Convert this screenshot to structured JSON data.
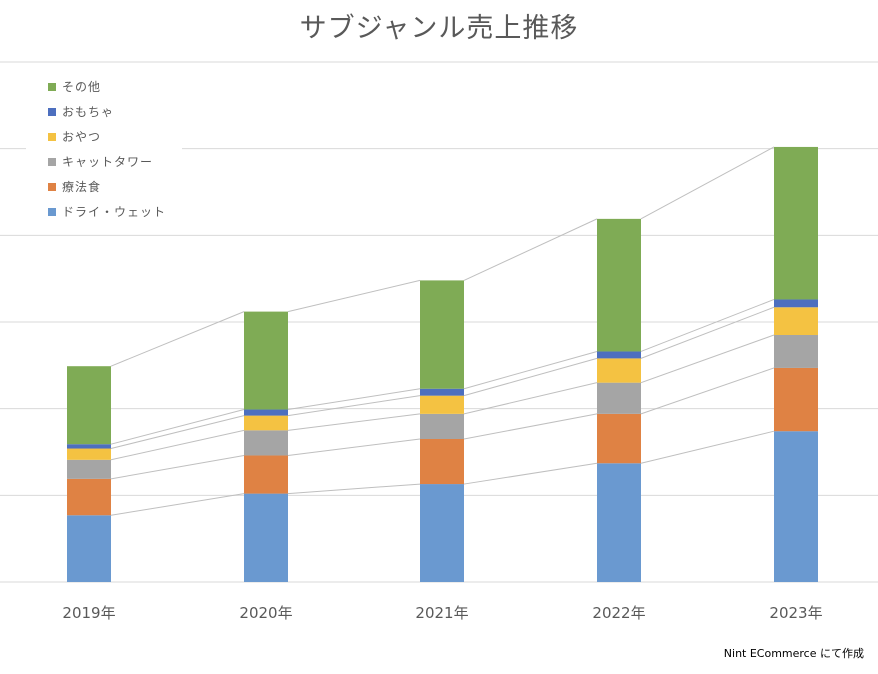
{
  "chart_data": {
    "type": "bar",
    "stacked": true,
    "title": "サブジャンル売上推移",
    "categories": [
      "2019年",
      "2020年",
      "2021年",
      "2022年",
      "2023年"
    ],
    "ylim": [
      0,
      6
    ],
    "y_axis_labels_shown": false,
    "grid": true,
    "series_lines": true,
    "legend_position": "top-left",
    "series": [
      {
        "name": "ドライ・ウェット",
        "color": "#6A99D0",
        "values": [
          0.77,
          1.02,
          1.13,
          1.37,
          1.74
        ]
      },
      {
        "name": "療法食",
        "color": "#DF8244",
        "values": [
          0.42,
          0.44,
          0.52,
          0.57,
          0.73
        ]
      },
      {
        "name": "キャットタワー",
        "color": "#A5A5A5",
        "values": [
          0.22,
          0.29,
          0.29,
          0.36,
          0.38
        ]
      },
      {
        "name": "おやつ",
        "color": "#F4C242",
        "values": [
          0.13,
          0.17,
          0.21,
          0.28,
          0.32
        ]
      },
      {
        "name": "おもちゃ",
        "color": "#4D6FBF",
        "values": [
          0.05,
          0.07,
          0.08,
          0.08,
          0.09
        ]
      },
      {
        "name": "その他",
        "color": "#7FAB55",
        "values": [
          0.9,
          1.13,
          1.25,
          1.53,
          1.76
        ]
      }
    ]
  },
  "credit": "Nint ECommerce にて作成"
}
